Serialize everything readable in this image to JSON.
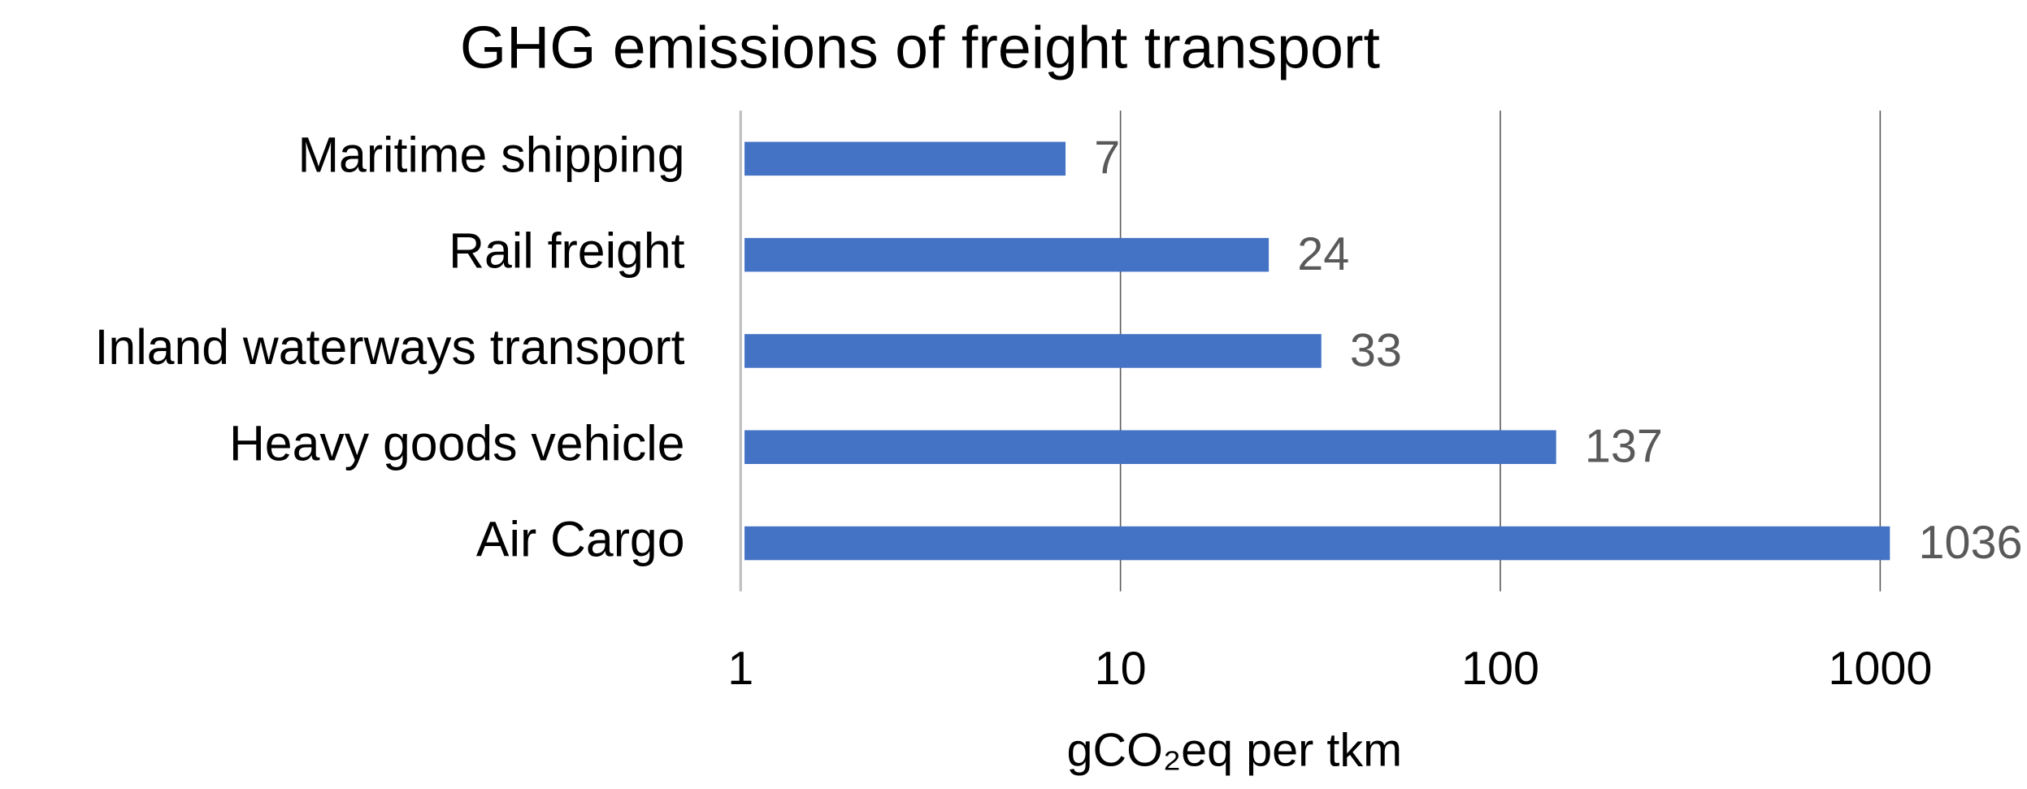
{
  "chart_data": {
    "type": "bar",
    "orientation": "horizontal",
    "title": "GHG emissions of  freight transport",
    "categories": [
      "Maritime shipping",
      "Rail freight",
      "Inland waterways transport",
      "Heavy goods vehicle",
      "Air Cargo"
    ],
    "values": [
      7,
      24,
      33,
      137,
      1036
    ],
    "color": "#4472c4",
    "xlabel": "gCO₂eq per tkm",
    "xscale": "log",
    "xlim": [
      1,
      1000
    ],
    "xticks": [
      1,
      10,
      100,
      1000
    ],
    "grid": true
  }
}
